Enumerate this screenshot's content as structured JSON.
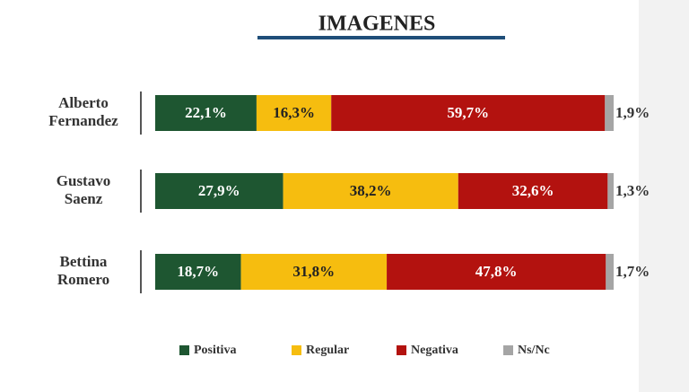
{
  "chart_data": {
    "type": "bar",
    "orientation": "horizontal",
    "stacked": true,
    "title": "IMAGENES",
    "categories": [
      "Alberto Fernandez",
      "Gustavo Saenz",
      "Bettina Romero"
    ],
    "series": [
      {
        "name": "Positiva",
        "color": "#1e5631",
        "values": [
          22.1,
          27.9,
          18.7
        ],
        "value_labels": [
          "22,1%",
          "27,9%",
          "18,7%"
        ]
      },
      {
        "name": "Regular",
        "color": "#f6bd0f",
        "values": [
          16.3,
          38.2,
          31.8
        ],
        "value_labels": [
          "16,3%",
          "38,2%",
          "31,8%"
        ]
      },
      {
        "name": "Negativa",
        "color": "#b3120f",
        "values": [
          59.7,
          32.6,
          47.8
        ],
        "value_labels": [
          "59,7%",
          "32,6%",
          "47,8%"
        ]
      },
      {
        "name": "Ns/Nc",
        "color": "#a5a5a5",
        "values": [
          1.9,
          1.3,
          1.7
        ],
        "value_labels": [
          "1,9%",
          "1,3%",
          "1,7%"
        ]
      }
    ],
    "legend": "bottom"
  }
}
